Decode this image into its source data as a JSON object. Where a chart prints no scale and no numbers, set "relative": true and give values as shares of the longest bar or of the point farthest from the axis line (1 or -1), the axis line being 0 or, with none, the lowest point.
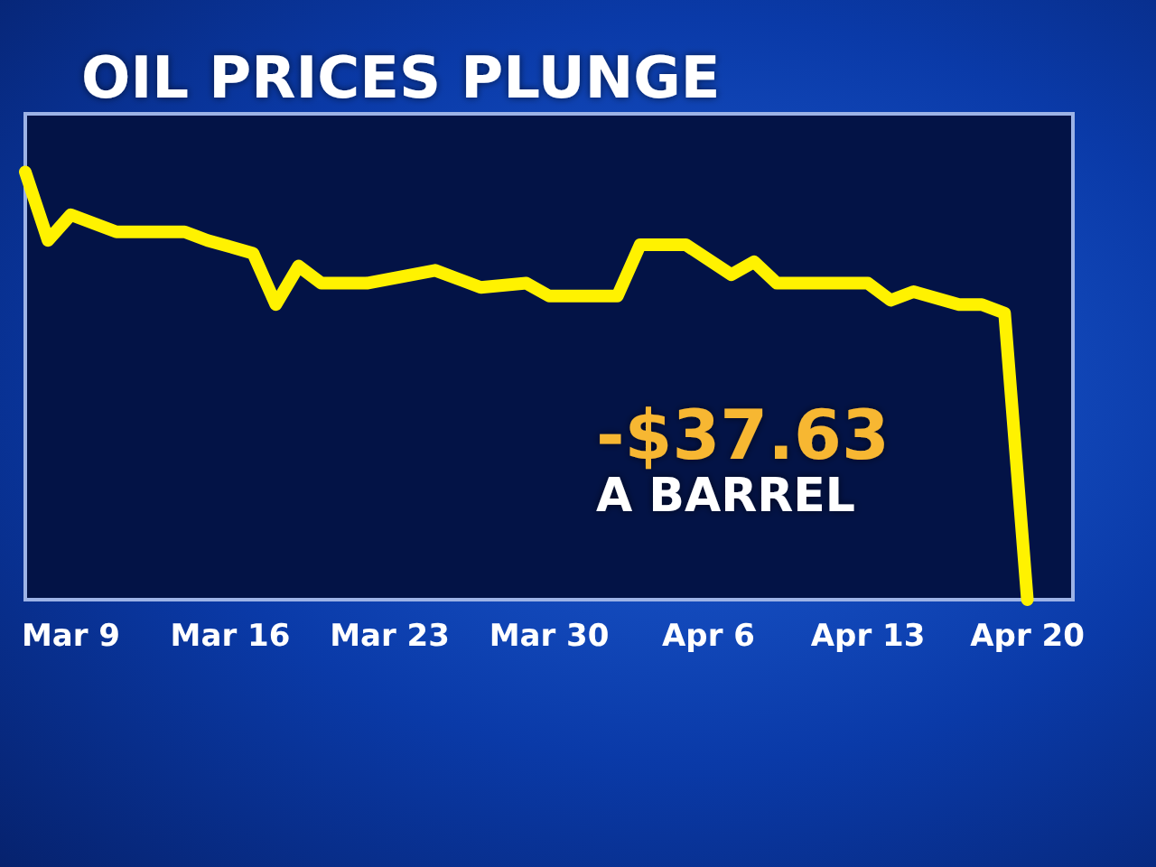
{
  "chart_data": {
    "type": "line",
    "title": "OIL PRICES PLUNGE",
    "relative": true,
    "x": [
      "--03-07",
      "--03-08",
      "--03-09",
      "--03-11",
      "--03-14",
      "--03-15",
      "--03-17",
      "--03-18",
      "--03-19",
      "--03-20",
      "--03-22",
      "--03-25",
      "--03-27",
      "--03-29",
      "--03-30",
      "--04-02",
      "--04-03",
      "--04-05",
      "--04-07",
      "--04-08",
      "--04-09",
      "--04-13",
      "--04-14",
      "--04-15",
      "--04-17",
      "--04-18",
      "--04-19",
      "--04-20"
    ],
    "series": [
      {
        "color": "#fff200",
        "values": [
          1.0,
          0.84,
          0.9,
          0.86,
          0.86,
          0.84,
          0.81,
          0.69,
          0.78,
          0.74,
          0.74,
          0.77,
          0.73,
          0.74,
          0.71,
          0.71,
          0.83,
          0.83,
          0.76,
          0.79,
          0.74,
          0.74,
          0.7,
          0.72,
          0.69,
          0.69,
          0.67,
          0
        ]
      }
    ],
    "xlim": [
      "--03-07",
      "--04-22"
    ],
    "xticks": [
      {
        "value": "--03-09",
        "label": "Mar 9"
      },
      {
        "value": "--03-16",
        "label": "Mar 16"
      },
      {
        "value": "--03-23",
        "label": "Mar 23"
      },
      {
        "value": "--03-30",
        "label": "Mar 30"
      },
      {
        "value": "--04-06",
        "label": "Apr 6"
      },
      {
        "value": "--04-13",
        "label": "Apr 13"
      },
      {
        "value": "--04-20",
        "label": "Apr 20"
      }
    ],
    "annotations": [
      "-$37.63",
      "A BARREL"
    ],
    "grid": false,
    "line_style": "solid"
  }
}
